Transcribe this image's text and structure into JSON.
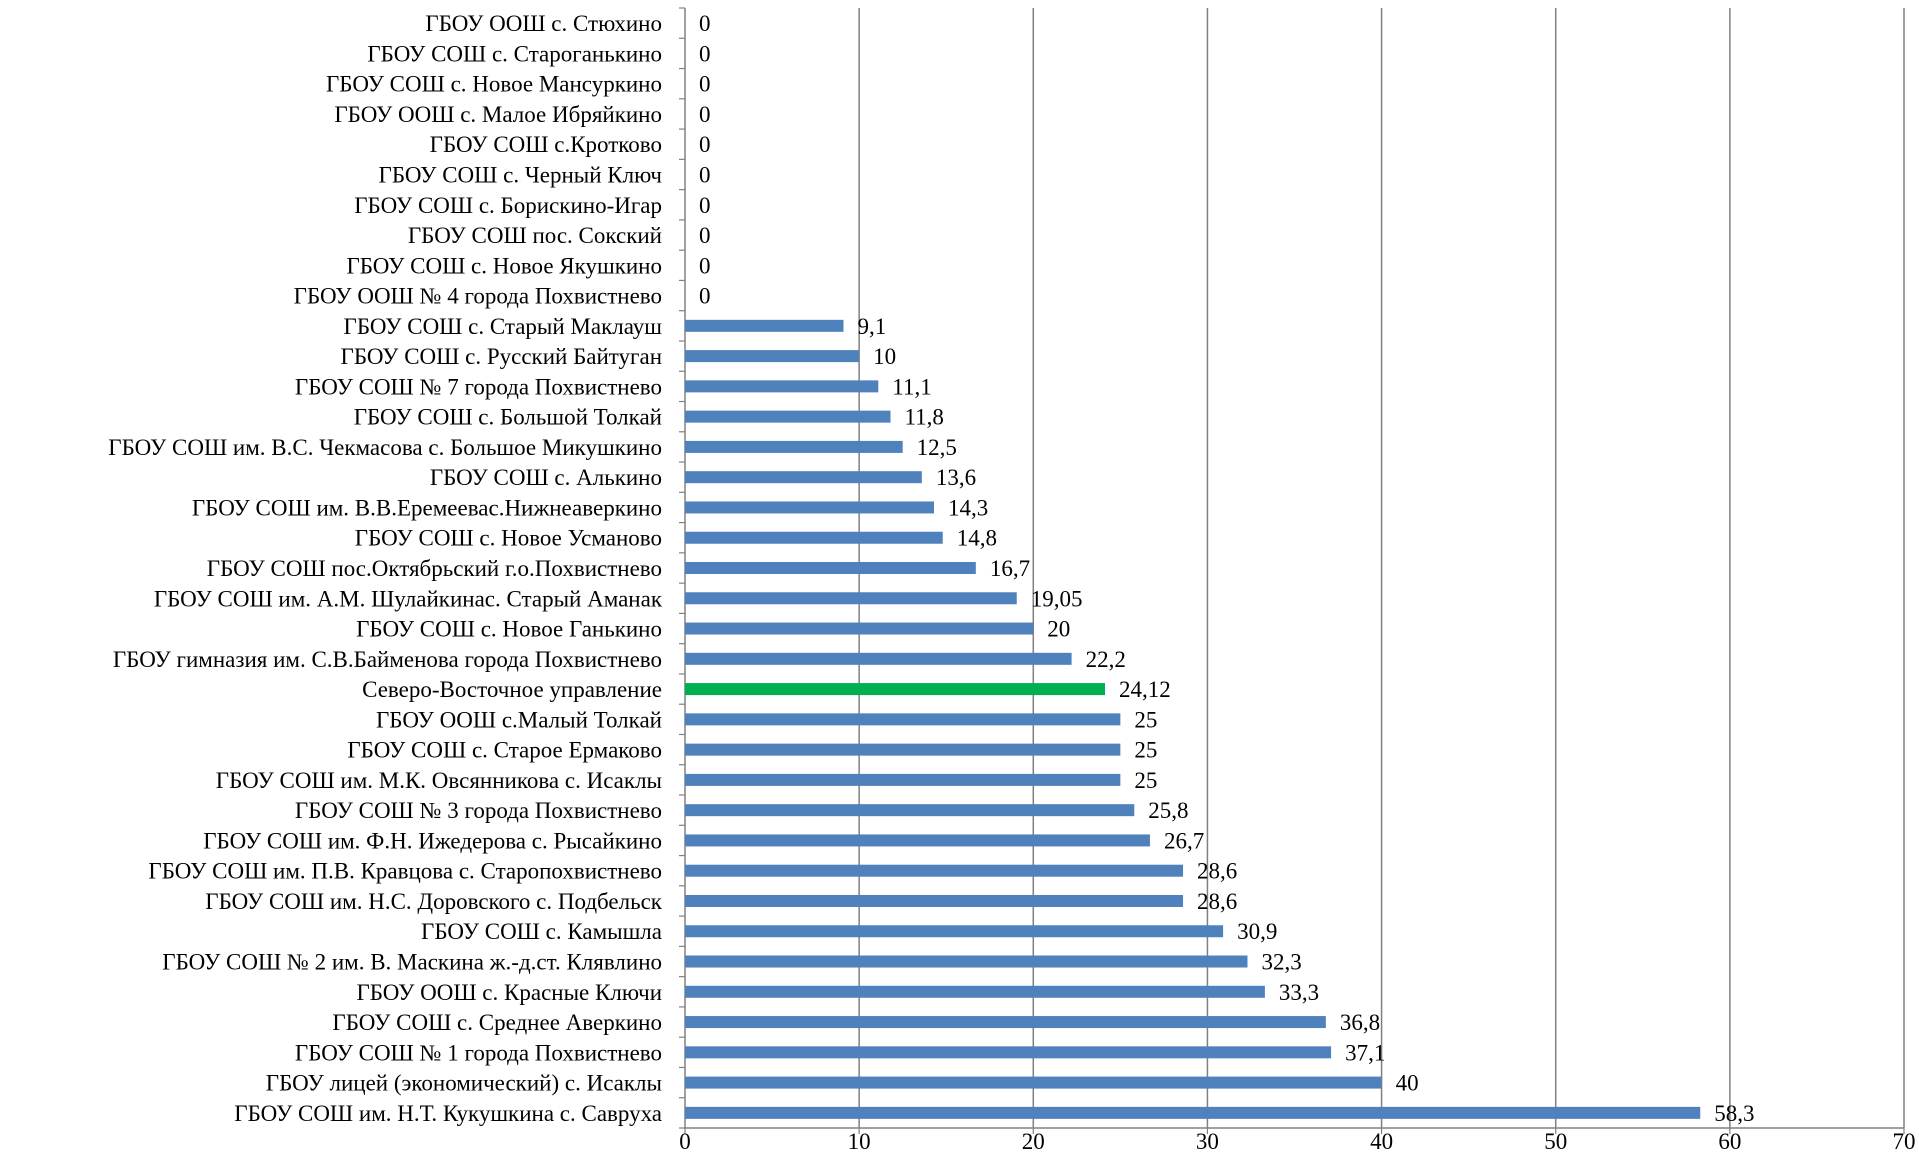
{
  "chart_data": {
    "type": "bar",
    "orientation": "horizontal",
    "title": "",
    "xlabel": "",
    "ylabel": "",
    "xlim": [
      0,
      70
    ],
    "ticks": [
      "0",
      "10",
      "20",
      "30",
      "40",
      "50",
      "60",
      "70"
    ],
    "grid": "vertical",
    "legend": "none",
    "colors": {
      "bar": "#4f81bd",
      "highlight": "#00b050",
      "grid": "#808080"
    },
    "categories": [
      "ГБОУ ООШ с. Стюхино",
      "ГБОУ СОШ с. Староганькино",
      "ГБОУ СОШ с. Новое Мансуркино",
      "ГБОУ ООШ с. Малое Ибряйкино",
      "ГБОУ СОШ с.Кротково",
      "ГБОУ СОШ с. Черный Ключ",
      "ГБОУ СОШ с. Борискино-Игар",
      "ГБОУ СОШ пос. Сокский",
      "ГБОУ СОШ с. Новое Якушкино",
      "ГБОУ ООШ № 4 города Похвистнево",
      "ГБОУ СОШ с. Старый Маклауш",
      "ГБОУ СОШ с. Русский Байтуган",
      "ГБОУ СОШ № 7 города Похвистнево",
      "ГБОУ СОШ с. Большой Толкай",
      "ГБОУ СОШ им. В.С. Чекмасова с. Большое Микушкино",
      "ГБОУ СОШ с. Алькино",
      "ГБОУ СОШ им. В.В.Еремеевас.Нижнеаверкино",
      "ГБОУ СОШ с. Новое Усманово",
      "ГБОУ СОШ пос.Октябрьский г.о.Похвистнево",
      "ГБОУ СОШ им. А.М. Шулайкинас. Старый Аманак",
      "ГБОУ СОШ с. Новое Ганькино",
      "ГБОУ гимназия им. С.В.Байменова города Похвистнево",
      "Северо-Восточное управление",
      "ГБОУ ООШ с.Малый Толкай",
      "ГБОУ СОШ с. Старое Ермаково",
      "ГБОУ СОШ им. М.К. Овсянникова с. Исаклы",
      "ГБОУ СОШ № 3 города Похвистнево",
      "ГБОУ СОШ им. Ф.Н. Ижедерова с. Рысайкино",
      "ГБОУ СОШ им. П.В. Кравцова с. Старопохвистнево",
      "ГБОУ СОШ им. Н.С. Доровского с. Подбельск",
      "ГБОУ СОШ с. Камышла",
      "ГБОУ СОШ № 2 им. В. Маскина ж.-д.ст. Клявлино",
      "ГБОУ ООШ с. Красные Ключи",
      "ГБОУ СОШ с. Среднее Аверкино",
      "ГБОУ СОШ № 1 города Похвистнево",
      "ГБОУ лицей (экономический) с. Исаклы",
      "ГБОУ СОШ им. Н.Т. Кукушкина с. Савруха"
    ],
    "values": [
      0,
      0,
      0,
      0,
      0,
      0,
      0,
      0,
      0,
      0,
      9.1,
      10,
      11.1,
      11.8,
      12.5,
      13.6,
      14.3,
      14.8,
      16.7,
      19.05,
      20,
      22.2,
      24.12,
      25,
      25,
      25,
      25.8,
      26.7,
      28.6,
      28.6,
      30.9,
      32.3,
      33.3,
      36.8,
      37.1,
      40,
      58.3
    ],
    "value_labels": [
      "0",
      "0",
      "0",
      "0",
      "0",
      "0",
      "0",
      "0",
      "0",
      "0",
      "9,1",
      "10",
      "11,1",
      "11,8",
      "12,5",
      "13,6",
      "14,3",
      "14,8",
      "16,7",
      "19,05",
      "20",
      "22,2",
      "24,12",
      "25",
      "25",
      "25",
      "25,8",
      "26,7",
      "28,6",
      "28,6",
      "30,9",
      "32,3",
      "33,3",
      "36,8",
      "37,1",
      "40",
      "58,3"
    ],
    "highlight_category": "Северо-Восточное управление"
  }
}
